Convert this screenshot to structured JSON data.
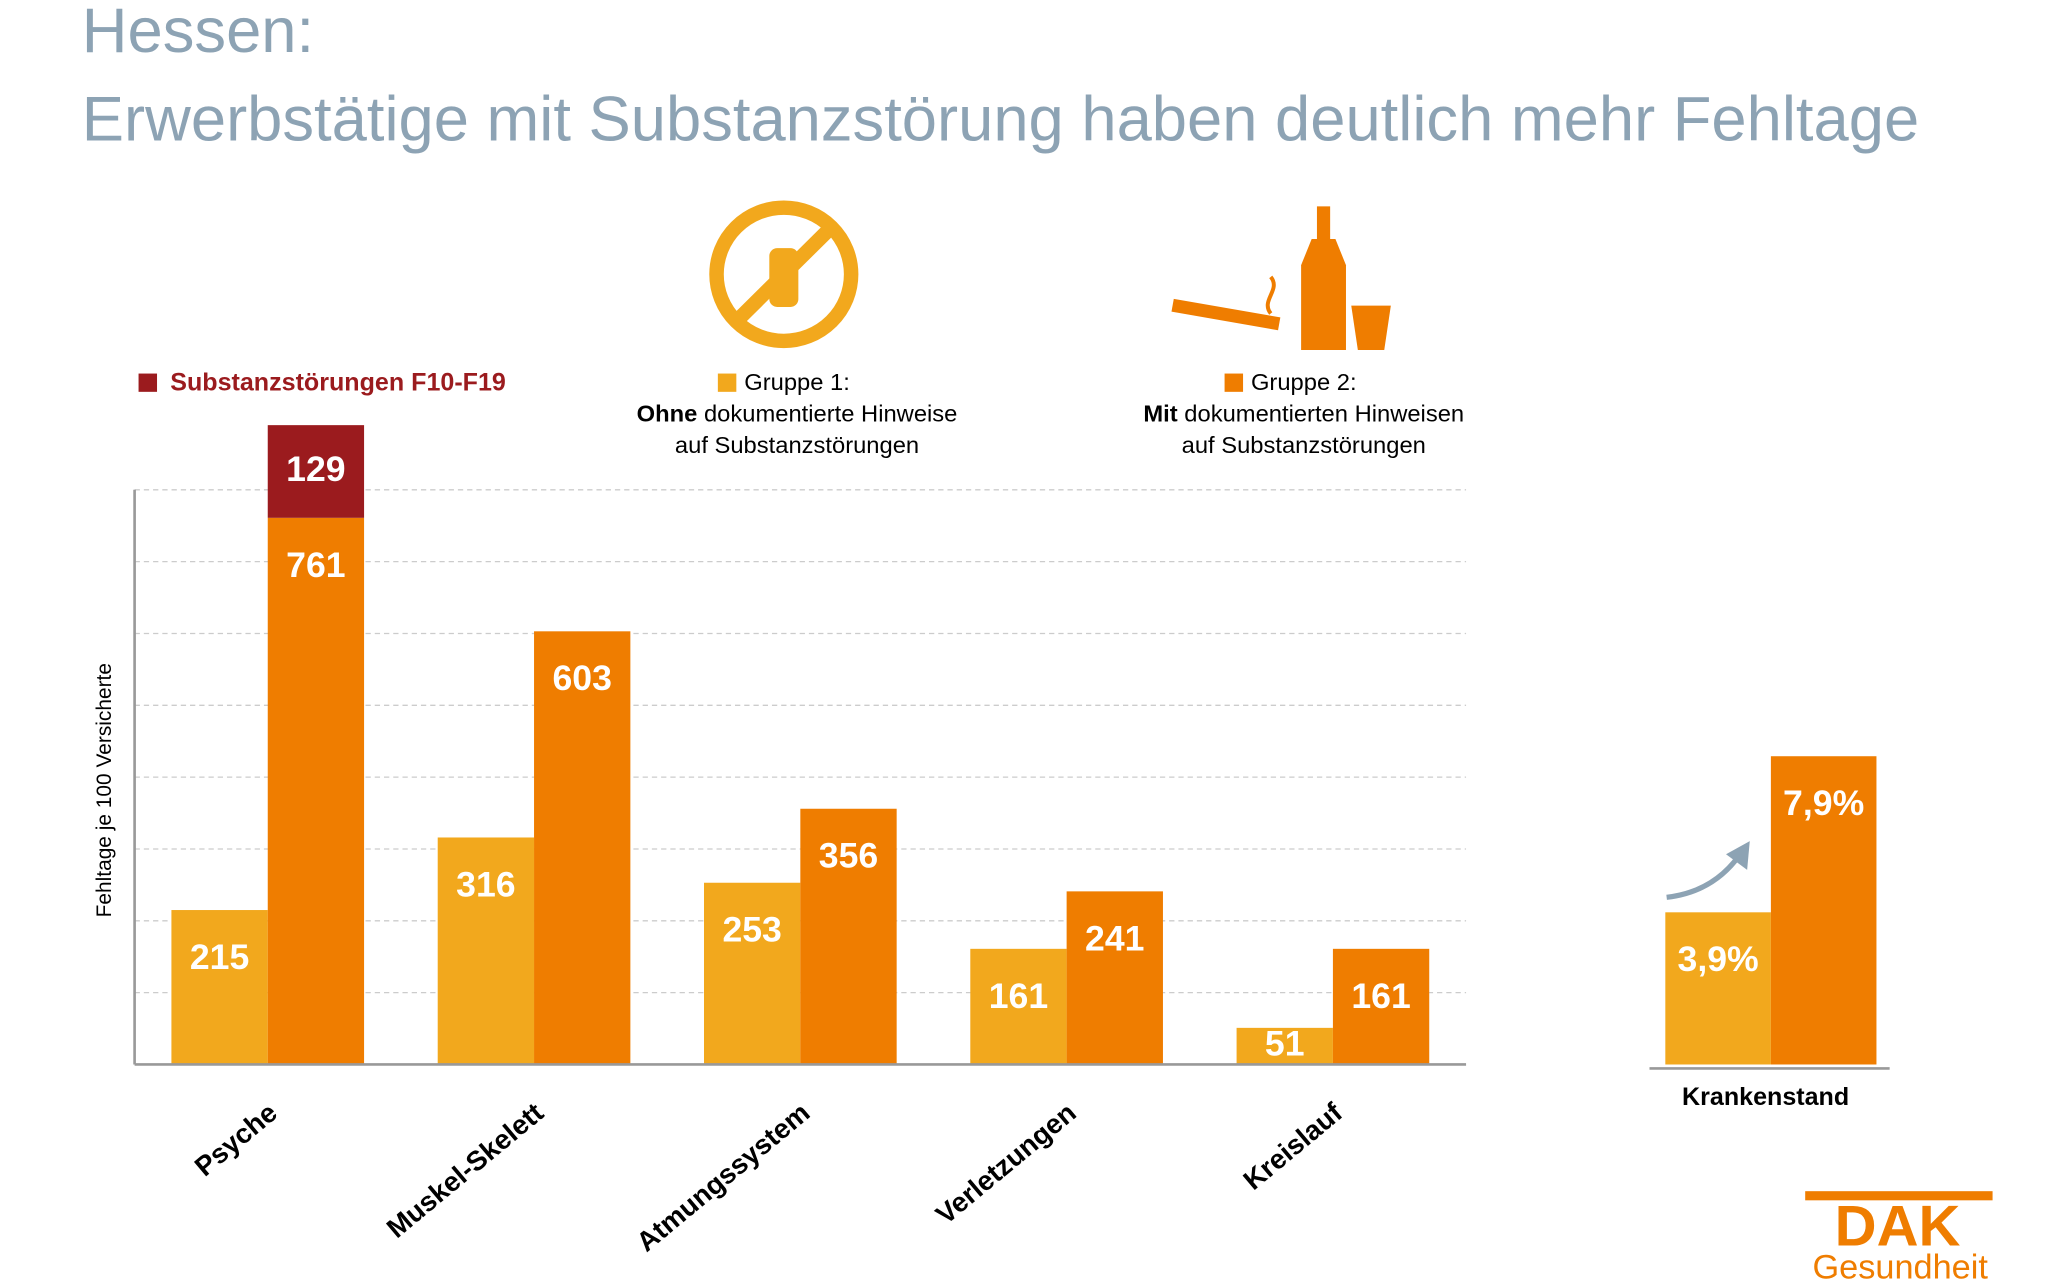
{
  "title": "Hessen:",
  "subtitle": "Erwerbstätige mit Substanzstörung haben deutlich mehr Fehltage",
  "chart_data": [
    {
      "type": "bar",
      "stacked_on": "Gruppe 2:",
      "ylabel": "Fehltage je 100 Versicherte",
      "categories": [
        "Psyche",
        "Muskel-Skelett",
        "Atmungssystem",
        "Verletzungen",
        "Kreislauf"
      ],
      "series": [
        {
          "name": "Gruppe 1:",
          "desc_bold": "Ohne",
          "desc": [
            "dokumentierte Hinweise",
            "auf Substanzstörungen"
          ],
          "color": "#f2a81d",
          "values": [
            215,
            316,
            253,
            161,
            51
          ]
        },
        {
          "name": "Gruppe 2:",
          "desc_bold": "Mit",
          "desc": [
            "dokumentierten Hinweisen",
            "auf Substanzstörungen"
          ],
          "color": "#ef7d00",
          "values": [
            761,
            603,
            356,
            241,
            161
          ]
        },
        {
          "name": "Substanzstörungen F10-F19",
          "color": "#9b1b1e",
          "values": [
            129,
            null,
            null,
            null,
            null
          ]
        }
      ],
      "ylim": [
        0,
        800
      ],
      "yticks": [
        100,
        200,
        300,
        400,
        500,
        600,
        700,
        800
      ],
      "grid": true
    },
    {
      "type": "bar",
      "categories": [
        "Krankenstand"
      ],
      "series": [
        {
          "name": "Gruppe 1:",
          "color": "#f2a81d",
          "values": [
            3.9
          ],
          "value_labels": [
            "3,9%"
          ]
        },
        {
          "name": "Gruppe 2:",
          "color": "#ef7d00",
          "values": [
            7.9
          ],
          "value_labels": [
            "7,9%"
          ]
        }
      ],
      "ylim": [
        0,
        8
      ]
    }
  ],
  "logo": {
    "brand": "DAK",
    "sub": "Gesundheit"
  }
}
